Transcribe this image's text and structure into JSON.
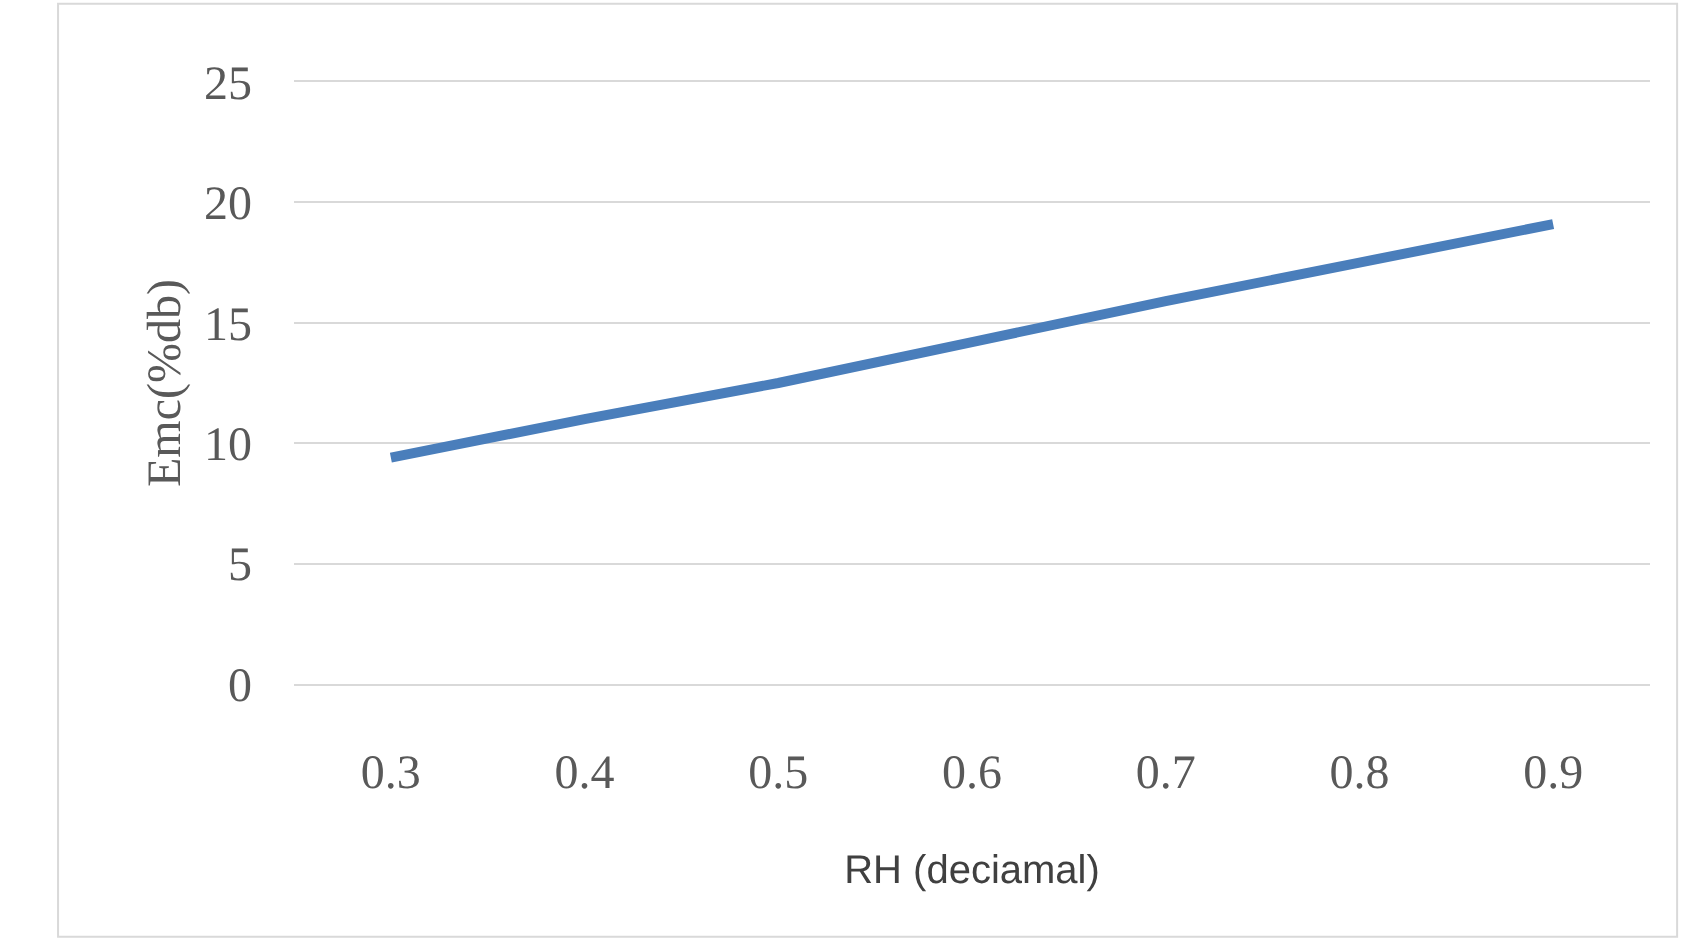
{
  "chart_data": {
    "type": "line",
    "xlabel": "RH (deciamal)",
    "ylabel": "Emc(%db)",
    "categories": [
      "0.3",
      "0.4",
      "0.5",
      "0.6",
      "0.7",
      "0.8",
      "0.9"
    ],
    "series": [
      {
        "color": "#4a7ebb",
        "values": [
          9.4,
          11.0,
          12.5,
          14.2,
          15.9,
          17.5,
          19.1
        ]
      }
    ],
    "ylim": [
      0,
      25
    ],
    "yticks": [
      0,
      5,
      10,
      15,
      20,
      25
    ],
    "grid": "y",
    "marker": "none",
    "line_style": "solid"
  }
}
